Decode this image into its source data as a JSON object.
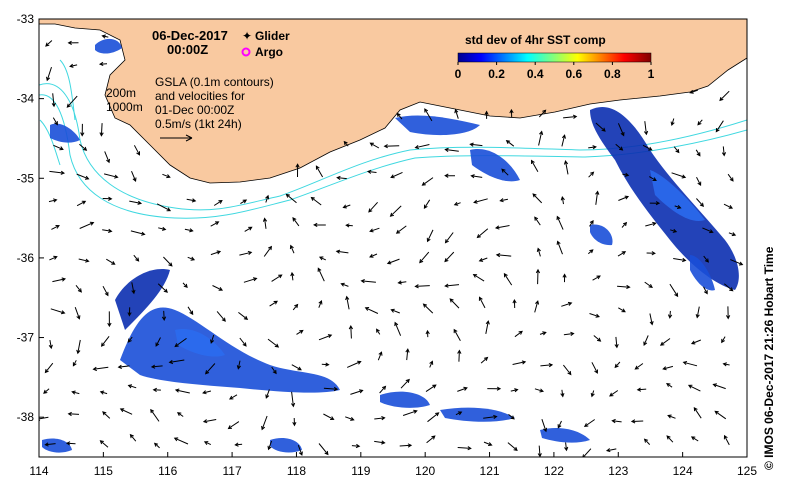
{
  "map": {
    "date_line1": "06-Dec-2017",
    "date_line2": "00:00Z",
    "legend_glider": "Glider",
    "legend_argo": "Argo",
    "contour_labels": [
      "200m",
      "1000m"
    ],
    "gsla_lines": [
      "GSLA (0.1m contours)",
      "and velocities for",
      "01-Dec 00:00Z",
      "0.5m/s (1kt 24h)"
    ],
    "land_color": "#f9c9a0",
    "contour_color": "#40d8e0",
    "glider_color": "#ff00ff",
    "argo_color": "#ff00ff"
  },
  "colorbar": {
    "title": "std dev of 4hr SST comp",
    "tick_labels": [
      "0",
      "0.2",
      "0.4",
      "0.6",
      "0.8",
      "1"
    ],
    "range": [
      0,
      1
    ],
    "colormap": "jet"
  },
  "axes": {
    "x_ticks": [
      "114",
      "115",
      "116",
      "117",
      "118",
      "119",
      "120",
      "121",
      "122",
      "123",
      "124",
      "125"
    ],
    "y_ticks": [
      "-33",
      "-34",
      "-35",
      "-36",
      "-37",
      "-38"
    ],
    "lon_range": [
      114,
      125
    ],
    "lat_range": [
      -38.5,
      -33
    ]
  },
  "credit": "© IMOS 06-Dec-2017 21:26 Hobart Time"
}
